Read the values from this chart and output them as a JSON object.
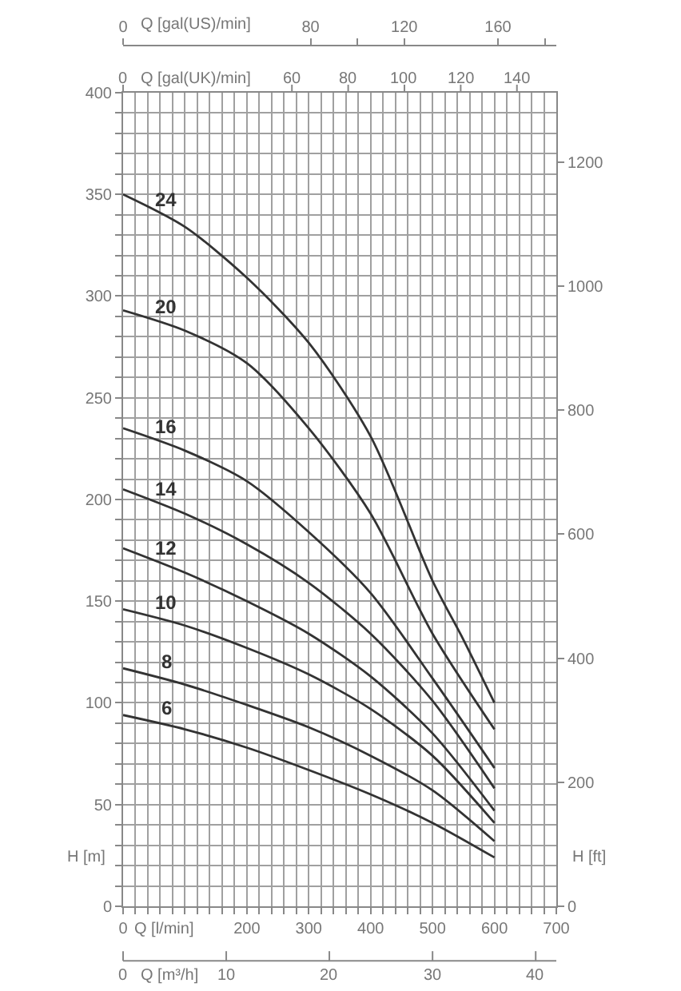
{
  "chart_data": {
    "type": "line",
    "xlabel": "Q [l/min]",
    "ylabel": "H [m]",
    "y2label": "H [ft]",
    "x2label": "Q [gal(US)/min]",
    "annotations": [
      "Q [gal(UK)/min]",
      "0",
      "60",
      "80",
      "100",
      "120",
      "140",
      "Q [m³/h]",
      "0",
      "10",
      "20",
      "30",
      "40"
    ],
    "xlim": [
      0,
      700
    ],
    "xticks": [
      0,
      {
        "value": 20,
        "label": null
      },
      {
        "value": 40,
        "label": null
      },
      {
        "value": 60,
        "label": null
      },
      {
        "value": 80,
        "label": null
      },
      {
        "value": 100,
        "label": null
      },
      {
        "value": 120,
        "label": null
      },
      {
        "value": 140,
        "label": null
      },
      {
        "value": 160,
        "label": null
      },
      {
        "value": 180,
        "label": null
      },
      200,
      {
        "value": 220,
        "label": null
      },
      {
        "value": 240,
        "label": null
      },
      {
        "value": 260,
        "label": null
      },
      {
        "value": 280,
        "label": null
      },
      300,
      {
        "value": 320,
        "label": null
      },
      {
        "value": 340,
        "label": null
      },
      {
        "value": 360,
        "label": null
      },
      {
        "value": 380,
        "label": null
      },
      400,
      {
        "value": 420,
        "label": null
      },
      {
        "value": 440,
        "label": null
      },
      {
        "value": 460,
        "label": null
      },
      {
        "value": 480,
        "label": null
      },
      500,
      {
        "value": 520,
        "label": null
      },
      {
        "value": 540,
        "label": null
      },
      {
        "value": 560,
        "label": null
      },
      {
        "value": 580,
        "label": null
      },
      600,
      {
        "value": 620,
        "label": null
      },
      {
        "value": 640,
        "label": null
      },
      {
        "value": 660,
        "label": null
      },
      {
        "value": 680,
        "label": null
      },
      700
    ],
    "ylim": [
      0,
      400
    ],
    "yticks": [
      0,
      {
        "value": 10,
        "label": null
      },
      {
        "value": 20,
        "label": null
      },
      {
        "value": 30,
        "label": null
      },
      {
        "value": 40,
        "label": null
      },
      50,
      {
        "value": 60,
        "label": null
      },
      {
        "value": 70,
        "label": null
      },
      {
        "value": 80,
        "label": null
      },
      {
        "value": 90,
        "label": null
      },
      100,
      {
        "value": 110,
        "label": null
      },
      {
        "value": 120,
        "label": null
      },
      {
        "value": 130,
        "label": null
      },
      {
        "value": 140,
        "label": null
      },
      150,
      {
        "value": 160,
        "label": null
      },
      {
        "value": 170,
        "label": null
      },
      {
        "value": 180,
        "label": null
      },
      {
        "value": 190,
        "label": null
      },
      200,
      {
        "value": 210,
        "label": null
      },
      {
        "value": 220,
        "label": null
      },
      {
        "value": 230,
        "label": null
      },
      {
        "value": 240,
        "label": null
      },
      250,
      {
        "value": 260,
        "label": null
      },
      {
        "value": 270,
        "label": null
      },
      {
        "value": 280,
        "label": null
      },
      {
        "value": 290,
        "label": null
      },
      300,
      {
        "value": 310,
        "label": null
      },
      {
        "value": 320,
        "label": null
      },
      {
        "value": 330,
        "label": null
      },
      {
        "value": 340,
        "label": null
      },
      350,
      {
        "value": 360,
        "label": null
      },
      {
        "value": 370,
        "label": null
      },
      {
        "value": 380,
        "label": null
      },
      {
        "value": 390,
        "label": null
      },
      400
    ],
    "y2lim": [
      0,
      1312
    ],
    "y2ticks": [
      0,
      200,
      400,
      600,
      800,
      1000,
      1200
    ],
    "x2lim": [
      0,
      184.9
    ],
    "x2ticks": [
      0,
      80,
      {
        "value": 100,
        "label": null
      },
      120,
      160,
      {
        "value": 180,
        "label": null
      }
    ],
    "grid": true,
    "series": [
      {
        "name": "24",
        "color": "#333333",
        "x": [
          0,
          100,
          200,
          300,
          400,
          500,
          550,
          600
        ],
        "values": [
          350,
          334,
          309,
          277,
          231,
          160,
          131,
          100
        ]
      },
      {
        "name": "20",
        "color": "#333333",
        "x": [
          0,
          100,
          200,
          300,
          400,
          500,
          600
        ],
        "values": [
          293,
          283,
          267,
          235,
          193,
          134,
          87
        ]
      },
      {
        "name": "16",
        "color": "#333333",
        "x": [
          0,
          100,
          200,
          300,
          400,
          500,
          600
        ],
        "values": [
          235,
          224,
          209,
          184,
          154,
          112,
          68
        ]
      },
      {
        "name": "14",
        "color": "#333333",
        "x": [
          0,
          100,
          200,
          300,
          400,
          500,
          600
        ],
        "values": [
          205,
          193,
          178,
          159,
          134,
          101,
          58
        ]
      },
      {
        "name": "12",
        "color": "#333333",
        "x": [
          0,
          100,
          200,
          300,
          400,
          500,
          600
        ],
        "values": [
          176,
          164,
          150,
          134,
          113,
          85,
          47
        ]
      },
      {
        "name": "10",
        "color": "#333333",
        "x": [
          0,
          100,
          200,
          300,
          400,
          500,
          600
        ],
        "values": [
          146,
          138,
          127,
          114,
          97,
          74,
          41
        ]
      },
      {
        "name": "8",
        "color": "#333333",
        "x": [
          0,
          100,
          200,
          300,
          400,
          500,
          600
        ],
        "values": [
          117,
          109,
          99,
          88,
          74,
          57,
          32
        ]
      },
      {
        "name": "6",
        "color": "#333333",
        "x": [
          0,
          100,
          200,
          300,
          400,
          500,
          600
        ],
        "values": [
          94,
          87,
          78,
          67,
          55,
          41,
          24
        ]
      }
    ]
  }
}
